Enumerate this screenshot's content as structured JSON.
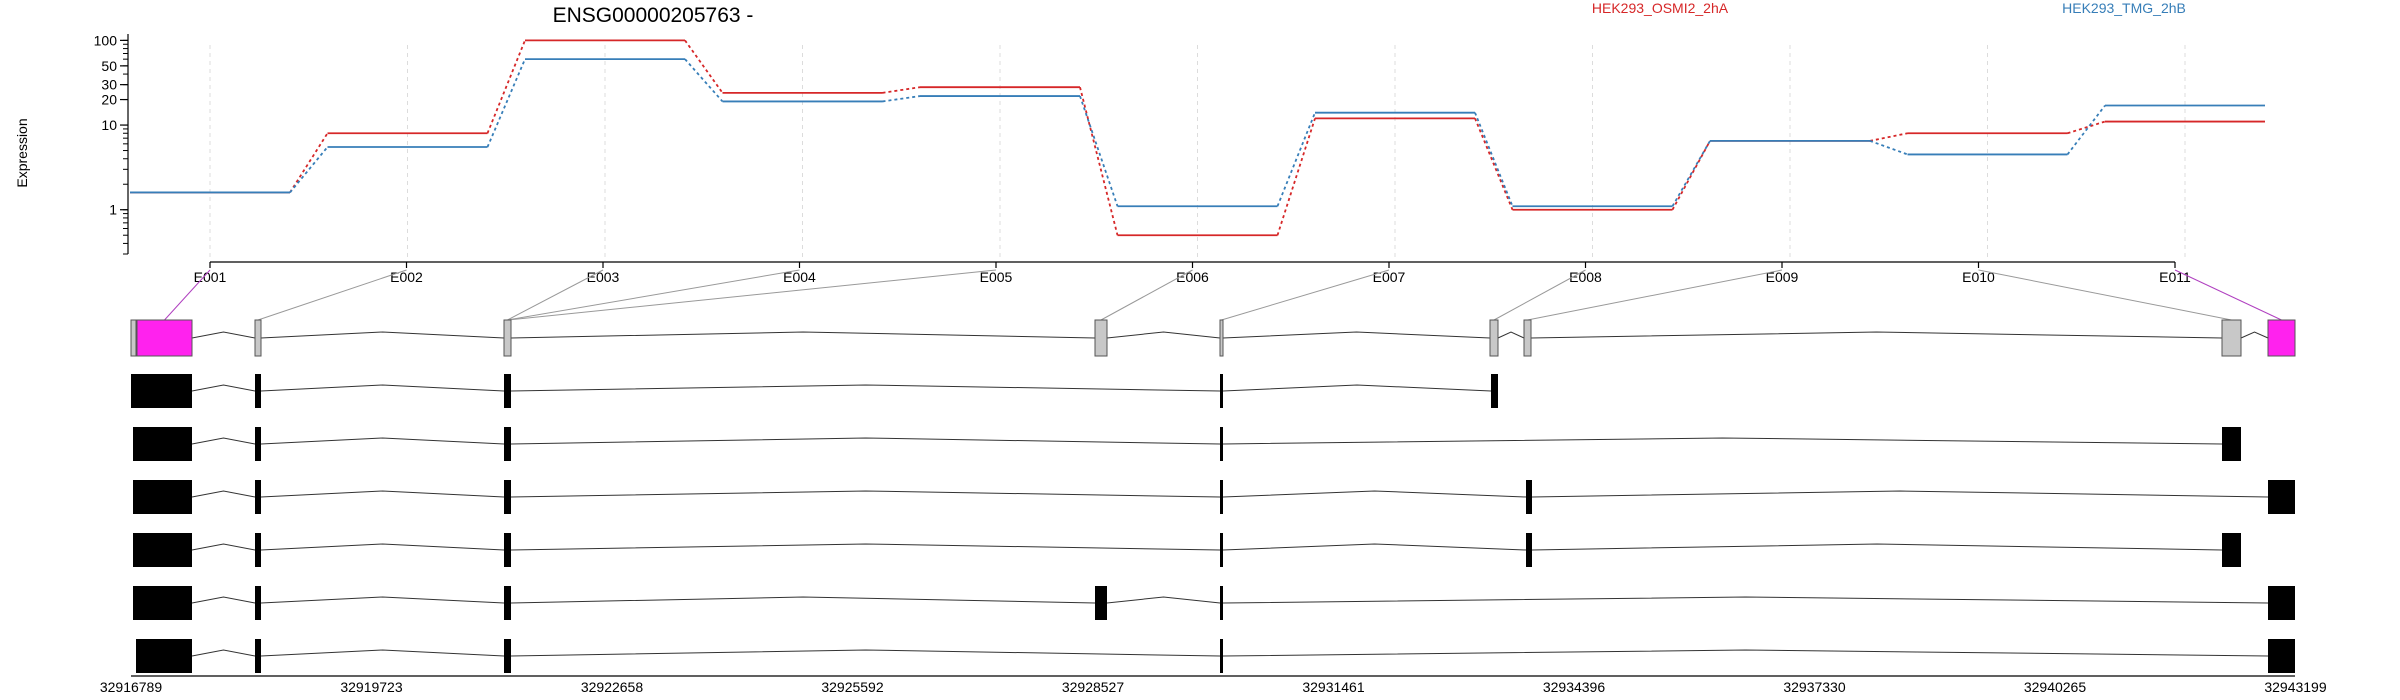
{
  "chart_data": {
    "type": "line",
    "title": "ENSG00000205763 -",
    "ylabel": "Expression",
    "xlabel": "",
    "y_scale": "log",
    "ylim": [
      0.3,
      140
    ],
    "y_ticks": [
      1,
      10,
      20,
      30,
      50,
      100
    ],
    "grid": "vertical dashed lines at exon ticks",
    "legend_placement": "top-right",
    "categories": [
      "E001",
      "E002",
      "E003",
      "E004",
      "E005",
      "E006",
      "E007",
      "E008",
      "E009",
      "E010",
      "E011"
    ],
    "series": [
      {
        "name": "HEK293_OSMI2_2hA",
        "color": "#d62728",
        "values": [
          1.6,
          8,
          100,
          24,
          28,
          0.5,
          12,
          1.0,
          6.5,
          8,
          11
        ]
      },
      {
        "name": "HEK293_TMG_2hB",
        "color": "#377eb8",
        "values": [
          1.6,
          5.5,
          60,
          19,
          22,
          1.1,
          14,
          1.1,
          6.5,
          4.5,
          17
        ]
      }
    ],
    "gene_track": {
      "coordinate_ticks": [
        "32916789",
        "32919723",
        "32922658",
        "32925592",
        "32928527",
        "32931461",
        "32934396",
        "32937330",
        "32940265",
        "32943199"
      ],
      "highlighted_exons": [
        "E001",
        "E011"
      ],
      "highlight_color": "#ff22ee",
      "exon_color": "#c8c8c8",
      "transcript_count": 6
    }
  }
}
